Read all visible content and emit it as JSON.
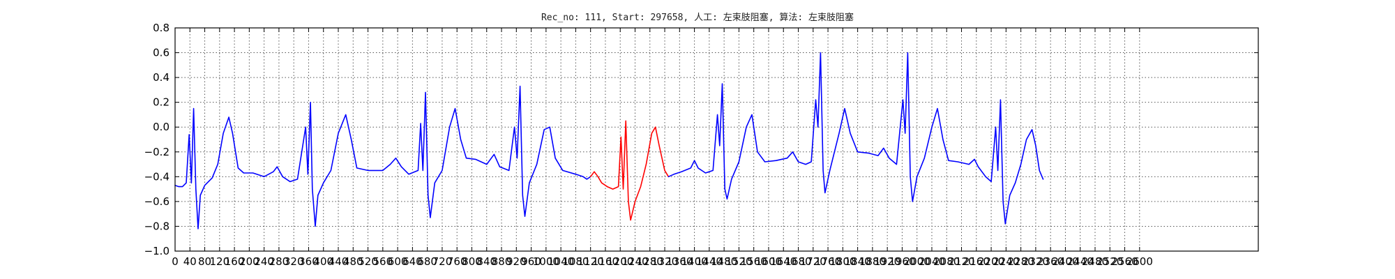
{
  "chart_data": {
    "type": "line",
    "title": "Rec_no: 111, Start: 297658, 人工: 左束肢阻塞, 算法: 左束肢阻塞",
    "xlabel": "",
    "ylabel": "",
    "xlim": [
      0,
      2920
    ],
    "ylim": [
      -1.0,
      0.8
    ],
    "grid": true,
    "y_ticks": [
      0.8,
      0.6,
      0.4,
      0.2,
      0.0,
      -0.2,
      -0.4,
      -0.6,
      -0.8,
      -1.0
    ],
    "y_tick_labels": [
      "0.8",
      "0.6",
      "0.4",
      "0.2",
      "0.0",
      "−0.2",
      "−0.4",
      "−0.6",
      "−0.8",
      "−1.0"
    ],
    "x_ticks": [
      0,
      40,
      80,
      120,
      160,
      200,
      240,
      280,
      320,
      360,
      400,
      440,
      480,
      520,
      560,
      600,
      640,
      680,
      720,
      760,
      800,
      840,
      880,
      920,
      960,
      1000,
      1040,
      1080,
      1120,
      1160,
      1200,
      1240,
      1280,
      1320,
      1360,
      1400,
      1440,
      1480,
      1520,
      1560,
      1600,
      1640,
      1680,
      1720,
      1760,
      1800,
      1840,
      1880,
      1920,
      1960,
      2000,
      2040,
      2080,
      2120,
      2160,
      2200,
      2240,
      2280,
      2320,
      2360,
      2400,
      2440,
      2480,
      2520,
      2560,
      2600
    ],
    "x_tick_labels": [
      "0",
      "40",
      "80",
      "120",
      "160",
      "200",
      "240",
      "280",
      "320",
      "360",
      "400",
      "440",
      "480",
      "520",
      "560",
      "600",
      "640",
      "680",
      "720",
      "760",
      "800",
      "840",
      "880",
      "920",
      "960",
      "1000",
      "1040",
      "1080",
      "1120",
      "1160",
      "1200",
      "1240",
      "1280",
      "1320",
      "1360",
      "1400",
      "1440",
      "1480",
      "1520",
      "1560",
      "1600",
      "1640",
      "1680",
      "1720",
      "1760",
      "1800",
      "1840",
      "1880",
      "1920",
      "1960",
      "2000",
      "2040",
      "2080",
      "2120",
      "2160",
      "2200",
      "2240",
      "2280",
      "2320",
      "2360",
      "2400",
      "2440",
      "2480",
      "2520",
      "2560",
      "2600"
    ],
    "colors": {
      "normal": "#0000ff",
      "highlight": "#ff0000"
    },
    "series": [
      {
        "color": "#0000ff",
        "points": [
          [
            0,
            -0.47
          ],
          [
            10,
            -0.48
          ],
          [
            20,
            -0.48
          ],
          [
            30,
            -0.45
          ],
          [
            38,
            -0.06
          ],
          [
            44,
            -0.45
          ],
          [
            50,
            0.15
          ],
          [
            56,
            -0.5
          ],
          [
            62,
            -0.82
          ],
          [
            68,
            -0.55
          ],
          [
            80,
            -0.47
          ],
          [
            100,
            -0.41
          ],
          [
            115,
            -0.3
          ],
          [
            130,
            -0.05
          ],
          [
            145,
            0.08
          ],
          [
            155,
            -0.05
          ],
          [
            170,
            -0.33
          ],
          [
            185,
            -0.37
          ],
          [
            210,
            -0.37
          ],
          [
            240,
            -0.4
          ],
          [
            265,
            -0.36
          ],
          [
            275,
            -0.32
          ],
          [
            290,
            -0.4
          ],
          [
            310,
            -0.44
          ],
          [
            330,
            -0.42
          ],
          [
            352,
            0.0
          ],
          [
            358,
            -0.38
          ],
          [
            365,
            0.2
          ],
          [
            370,
            -0.5
          ],
          [
            378,
            -0.8
          ],
          [
            385,
            -0.55
          ],
          [
            400,
            -0.45
          ],
          [
            420,
            -0.35
          ],
          [
            440,
            -0.05
          ],
          [
            460,
            0.1
          ],
          [
            475,
            -0.1
          ],
          [
            490,
            -0.33
          ],
          [
            520,
            -0.35
          ],
          [
            560,
            -0.35
          ],
          [
            580,
            -0.3
          ],
          [
            595,
            -0.25
          ],
          [
            610,
            -0.32
          ],
          [
            630,
            -0.38
          ],
          [
            655,
            -0.35
          ],
          [
            662,
            0.03
          ],
          [
            668,
            -0.35
          ],
          [
            675,
            0.28
          ],
          [
            682,
            -0.55
          ],
          [
            688,
            -0.73
          ],
          [
            700,
            -0.45
          ],
          [
            720,
            -0.35
          ],
          [
            740,
            0.0
          ],
          [
            755,
            0.15
          ],
          [
            770,
            -0.1
          ],
          [
            785,
            -0.25
          ],
          [
            810,
            -0.26
          ],
          [
            840,
            -0.3
          ],
          [
            860,
            -0.22
          ],
          [
            875,
            -0.32
          ],
          [
            900,
            -0.35
          ],
          [
            915,
            0.0
          ],
          [
            922,
            -0.25
          ],
          [
            930,
            0.33
          ],
          [
            937,
            -0.55
          ],
          [
            943,
            -0.72
          ],
          [
            955,
            -0.45
          ],
          [
            975,
            -0.3
          ],
          [
            995,
            -0.02
          ],
          [
            1010,
            0.0
          ],
          [
            1025,
            -0.25
          ],
          [
            1045,
            -0.35
          ],
          [
            1080,
            -0.38
          ],
          [
            1100,
            -0.4
          ],
          [
            1110,
            -0.42
          ],
          [
            1120,
            -0.4
          ]
        ]
      },
      {
        "color": "#ff0000",
        "points": [
          [
            1120,
            -0.4
          ],
          [
            1130,
            -0.36
          ],
          [
            1140,
            -0.4
          ],
          [
            1150,
            -0.45
          ],
          [
            1165,
            -0.48
          ],
          [
            1180,
            -0.5
          ],
          [
            1195,
            -0.48
          ],
          [
            1202,
            -0.08
          ],
          [
            1208,
            -0.5
          ],
          [
            1215,
            0.05
          ],
          [
            1222,
            -0.6
          ],
          [
            1228,
            -0.75
          ],
          [
            1240,
            -0.6
          ],
          [
            1255,
            -0.48
          ],
          [
            1270,
            -0.3
          ],
          [
            1285,
            -0.05
          ],
          [
            1295,
            0.0
          ],
          [
            1305,
            -0.15
          ],
          [
            1320,
            -0.35
          ],
          [
            1330,
            -0.4
          ]
        ]
      },
      {
        "color": "#0000ff",
        "points": [
          [
            1330,
            -0.4
          ],
          [
            1345,
            -0.38
          ],
          [
            1365,
            -0.36
          ],
          [
            1390,
            -0.33
          ],
          [
            1400,
            -0.27
          ],
          [
            1410,
            -0.33
          ],
          [
            1430,
            -0.37
          ],
          [
            1450,
            -0.35
          ],
          [
            1462,
            0.1
          ],
          [
            1468,
            -0.15
          ],
          [
            1475,
            0.35
          ],
          [
            1482,
            -0.5
          ],
          [
            1488,
            -0.58
          ],
          [
            1500,
            -0.42
          ],
          [
            1520,
            -0.28
          ],
          [
            1540,
            0.0
          ],
          [
            1555,
            0.1
          ],
          [
            1570,
            -0.2
          ],
          [
            1590,
            -0.28
          ],
          [
            1620,
            -0.27
          ],
          [
            1650,
            -0.25
          ],
          [
            1665,
            -0.2
          ],
          [
            1680,
            -0.28
          ],
          [
            1700,
            -0.3
          ],
          [
            1715,
            -0.28
          ],
          [
            1727,
            0.22
          ],
          [
            1733,
            0.0
          ],
          [
            1740,
            0.6
          ],
          [
            1747,
            -0.35
          ],
          [
            1752,
            -0.53
          ],
          [
            1765,
            -0.35
          ],
          [
            1790,
            -0.05
          ],
          [
            1805,
            0.15
          ],
          [
            1820,
            -0.05
          ],
          [
            1840,
            -0.2
          ],
          [
            1870,
            -0.21
          ],
          [
            1895,
            -0.23
          ],
          [
            1910,
            -0.17
          ],
          [
            1925,
            -0.25
          ],
          [
            1945,
            -0.3
          ],
          [
            1962,
            0.22
          ],
          [
            1968,
            -0.05
          ],
          [
            1975,
            0.6
          ],
          [
            1982,
            -0.4
          ],
          [
            1988,
            -0.6
          ],
          [
            2000,
            -0.4
          ],
          [
            2020,
            -0.25
          ],
          [
            2040,
            0.0
          ],
          [
            2055,
            0.15
          ],
          [
            2070,
            -0.1
          ],
          [
            2085,
            -0.27
          ],
          [
            2110,
            -0.28
          ],
          [
            2140,
            -0.3
          ],
          [
            2155,
            -0.26
          ],
          [
            2165,
            -0.32
          ],
          [
            2185,
            -0.4
          ],
          [
            2200,
            -0.44
          ],
          [
            2212,
            0.0
          ],
          [
            2218,
            -0.35
          ],
          [
            2225,
            0.22
          ],
          [
            2232,
            -0.6
          ],
          [
            2238,
            -0.78
          ],
          [
            2250,
            -0.55
          ],
          [
            2265,
            -0.45
          ],
          [
            2280,
            -0.3
          ],
          [
            2295,
            -0.1
          ],
          [
            2310,
            -0.02
          ],
          [
            2320,
            -0.15
          ],
          [
            2330,
            -0.35
          ],
          [
            2340,
            -0.42
          ]
        ]
      }
    ]
  }
}
